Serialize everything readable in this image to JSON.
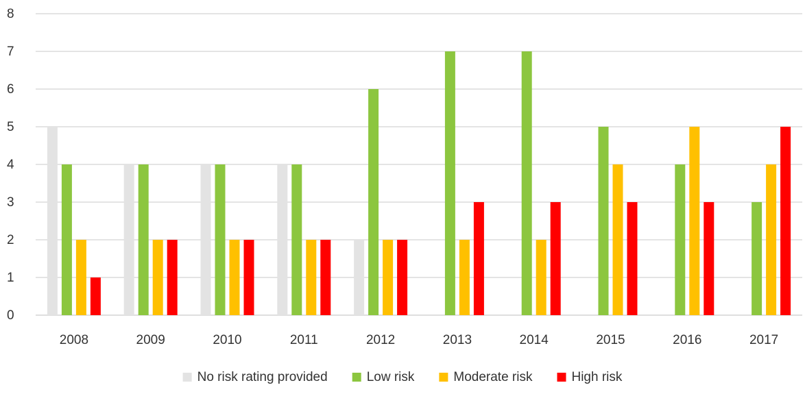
{
  "chart_data": {
    "type": "bar",
    "title": "",
    "xlabel": "",
    "ylabel": "",
    "ylim": [
      0,
      8
    ],
    "yticks": [
      0,
      1,
      2,
      3,
      4,
      5,
      6,
      7,
      8
    ],
    "grid": true,
    "legend_position": "bottom",
    "categories": [
      "2008",
      "2009",
      "2010",
      "2011",
      "2012",
      "2013",
      "2014",
      "2015",
      "2016",
      "2017"
    ],
    "series": [
      {
        "name": "No risk rating provided",
        "color": "#e3e3e3",
        "values": [
          5,
          4,
          4,
          4,
          2,
          0,
          0,
          0,
          0,
          0
        ]
      },
      {
        "name": "Low risk",
        "color": "#8cc63f",
        "values": [
          4,
          4,
          4,
          4,
          6,
          7,
          7,
          5,
          4,
          3
        ]
      },
      {
        "name": "Moderate risk",
        "color": "#ffc000",
        "values": [
          2,
          2,
          2,
          2,
          2,
          2,
          2,
          4,
          5,
          4
        ]
      },
      {
        "name": "High risk",
        "color": "#ff0000",
        "values": [
          1,
          2,
          2,
          2,
          2,
          3,
          3,
          3,
          3,
          5
        ]
      }
    ]
  }
}
